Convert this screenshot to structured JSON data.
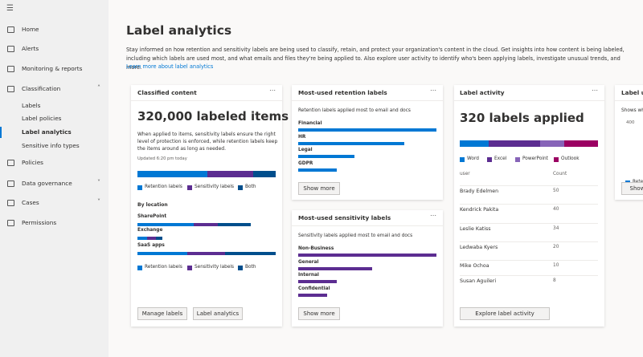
{
  "nav": {
    "items": [
      "Home",
      "Alerts",
      "Monitoring & reports",
      "Classification",
      "Labels",
      "Label policies",
      "Label analytics",
      "Sensitive info types",
      "Policies",
      "Data governance",
      "Cases",
      "Permissions"
    ]
  },
  "header": {
    "title": "Label analytics",
    "description": "Stay informed on how retention and sensitivity labels are being used to classify, retain, and protect your organization's content in the cloud. Get insights into how content is being labeled, including which labels are used most, and what emails and files they're being applied to. Also explore user activity to identify who's been applying labels, investigate unusual trends, and more.",
    "link": "Learn more about label analytics"
  },
  "cards": {
    "classified": {
      "title": "Classified content",
      "headline": "320,000 labeled items",
      "text": "When applied to items, sensitivity labels ensure the right level of protection is enforced, while retention labels keep the items around as long as needed.",
      "updated": "Updated 6:20 pm today",
      "legend": [
        "Retention labels",
        "Sensitivity labels",
        "Both"
      ],
      "location_title": "By location",
      "locations": [
        "SharePoint",
        "Exchange",
        "SaaS apps"
      ],
      "buttons": [
        "Manage labels",
        "Label analytics"
      ]
    },
    "retention": {
      "title": "Most-used retention labels",
      "subtitle": "Retention labels applied most to email and docs",
      "labels": [
        "Financial",
        "HR",
        "Legal",
        "GDPR"
      ],
      "button": "Show more"
    },
    "sensitivity": {
      "title": "Most-used sensitivity labels",
      "subtitle": "Sensitivity labels applied most to email and docs",
      "labels": [
        "Non-Business",
        "General",
        "Internal",
        "Confidential"
      ],
      "button": "Show more"
    },
    "activity": {
      "title": "Label activity",
      "headline": "320 labels applied",
      "legend": [
        "Word",
        "Excel",
        "PowerPoint",
        "Outlook"
      ],
      "columns": [
        "user",
        "Count"
      ],
      "rows": [
        [
          "Brady Edelmen",
          50
        ],
        [
          "Kendrick Pakita",
          40
        ],
        [
          "Leslie Katiss",
          34
        ],
        [
          "Ledwaba Kyers",
          20
        ],
        [
          "Mike Ochoa",
          10
        ],
        [
          "Susan Aguileri",
          8
        ]
      ],
      "button": "Explore label activity"
    },
    "usage": {
      "title": "Label us",
      "subtitle": "Shows wh",
      "axis": "400",
      "legend": "Retentio",
      "button": "Show"
    }
  }
}
